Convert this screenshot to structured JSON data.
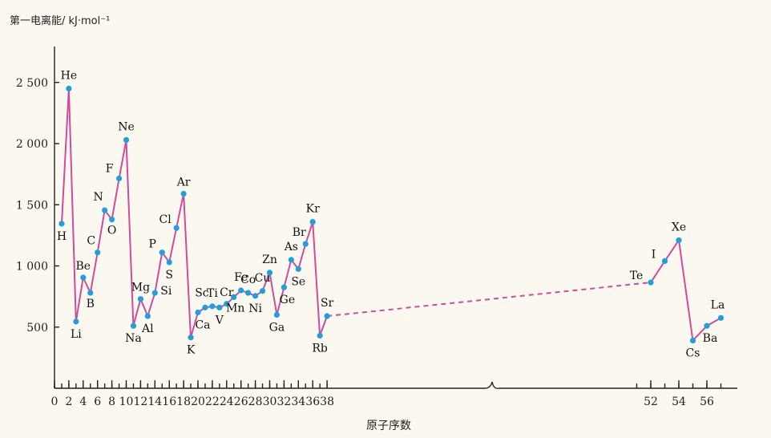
{
  "chart_data": {
    "type": "line",
    "ylabel": "第一电离能/ kJ·mol⁻¹",
    "xlabel": "原子序数",
    "ylim": [
      0,
      2800
    ],
    "yticks": [
      {
        "value": 500,
        "label": "500"
      },
      {
        "value": 1000,
        "label": "1 000"
      },
      {
        "value": 1500,
        "label": "1 500"
      },
      {
        "value": 2000,
        "label": "2 000"
      },
      {
        "value": 2500,
        "label": "2 500"
      }
    ],
    "xticks": [
      0,
      2,
      4,
      6,
      8,
      10,
      12,
      14,
      16,
      18,
      20,
      22,
      24,
      26,
      28,
      30,
      32,
      34,
      36,
      38,
      52,
      54,
      56
    ],
    "axis_break": {
      "after": 38,
      "before": 52
    },
    "dashed_segment": {
      "from": 38,
      "to": 52
    },
    "points": [
      {
        "z": 1,
        "symbol": "H",
        "value": 1345
      },
      {
        "z": 2,
        "symbol": "He",
        "value": 2450
      },
      {
        "z": 3,
        "symbol": "Li",
        "value": 545
      },
      {
        "z": 4,
        "symbol": "Be",
        "value": 905
      },
      {
        "z": 5,
        "symbol": "B",
        "value": 780
      },
      {
        "z": 6,
        "symbol": "C",
        "value": 1110
      },
      {
        "z": 7,
        "symbol": "N",
        "value": 1455
      },
      {
        "z": 8,
        "symbol": "O",
        "value": 1380
      },
      {
        "z": 9,
        "symbol": "F",
        "value": 1715
      },
      {
        "z": 10,
        "symbol": "Ne",
        "value": 2030
      },
      {
        "z": 11,
        "symbol": "Na",
        "value": 510
      },
      {
        "z": 12,
        "symbol": "Mg",
        "value": 730
      },
      {
        "z": 13,
        "symbol": "Al",
        "value": 590
      },
      {
        "z": 14,
        "symbol": "Si",
        "value": 780
      },
      {
        "z": 15,
        "symbol": "P",
        "value": 1110
      },
      {
        "z": 16,
        "symbol": "S",
        "value": 1030
      },
      {
        "z": 17,
        "symbol": "Cl",
        "value": 1310
      },
      {
        "z": 18,
        "symbol": "Ar",
        "value": 1590
      },
      {
        "z": 19,
        "symbol": "K",
        "value": 415
      },
      {
        "z": 20,
        "symbol": "Ca",
        "value": 620
      },
      {
        "z": 21,
        "symbol": "Sc",
        "value": 660
      },
      {
        "z": 22,
        "symbol": "Ti",
        "value": 670
      },
      {
        "z": 23,
        "symbol": "V",
        "value": 660
      },
      {
        "z": 24,
        "symbol": "Cr",
        "value": 690
      },
      {
        "z": 25,
        "symbol": "Mn",
        "value": 745
      },
      {
        "z": 26,
        "symbol": "Fe",
        "value": 800
      },
      {
        "z": 27,
        "symbol": "Co",
        "value": 780
      },
      {
        "z": 28,
        "symbol": "Ni",
        "value": 755
      },
      {
        "z": 29,
        "symbol": "Cu",
        "value": 795
      },
      {
        "z": 30,
        "symbol": "Zn",
        "value": 945
      },
      {
        "z": 31,
        "symbol": "Ga",
        "value": 600
      },
      {
        "z": 32,
        "symbol": "Ge",
        "value": 825
      },
      {
        "z": 33,
        "symbol": "As",
        "value": 1050
      },
      {
        "z": 34,
        "symbol": "Se",
        "value": 975
      },
      {
        "z": 35,
        "symbol": "Br",
        "value": 1180
      },
      {
        "z": 36,
        "symbol": "Kr",
        "value": 1360
      },
      {
        "z": 37,
        "symbol": "Rb",
        "value": 430
      },
      {
        "z": 38,
        "symbol": "Sr",
        "value": 590
      },
      {
        "z": 52,
        "symbol": "Te",
        "value": 865
      },
      {
        "z": 53,
        "symbol": "I",
        "value": 1040
      },
      {
        "z": 54,
        "symbol": "Xe",
        "value": 1210
      },
      {
        "z": 55,
        "symbol": "Cs",
        "value": 390
      },
      {
        "z": 56,
        "symbol": "Ba",
        "value": 510
      },
      {
        "z": 57,
        "symbol": "La",
        "value": 575
      }
    ]
  }
}
